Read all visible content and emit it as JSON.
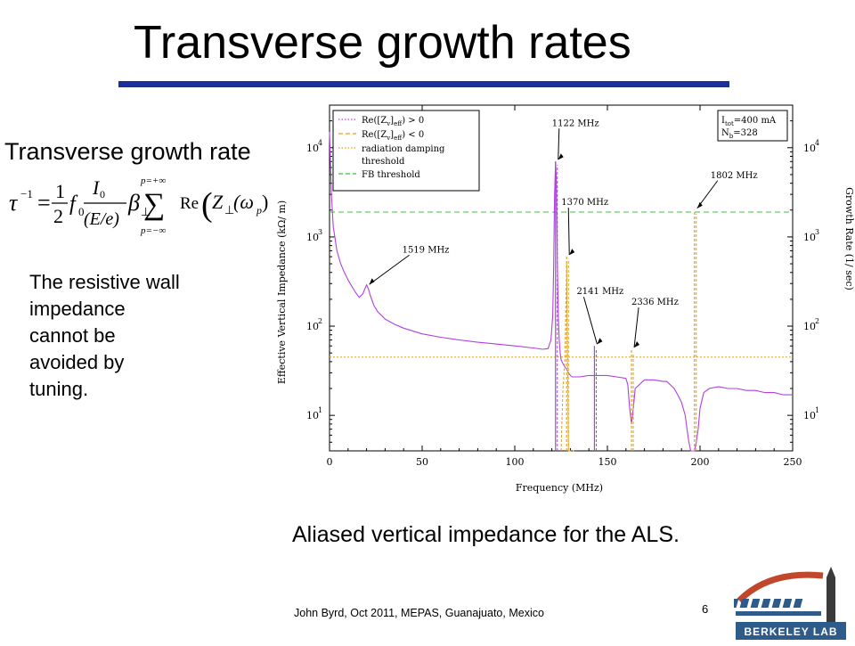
{
  "slide": {
    "title": "Transverse growth rates",
    "subtitle": "Transverse growth rate",
    "paragraph_lines": [
      "The resistive wall",
      "impedance",
      "cannot be",
      "avoided by",
      "tuning."
    ],
    "caption": "Aliased vertical impedance for the ALS.",
    "footer": "John Byrd, Oct 2011, MEPAS, Guanajuato, Mexico",
    "page_number": "6",
    "accent_color": "#1b2f9c",
    "logo_text": "BERKELEY LAB"
  },
  "formula": {
    "lhs": "τ",
    "lhs_exp": "−1",
    "eq": "=",
    "frac1_num": "1",
    "frac1_den": "2",
    "f0": "f",
    "f0_sub": "0",
    "frac2_num": "I",
    "frac2_num_sub": "0",
    "frac2_den": "(E/e)",
    "beta": "β",
    "beta_sub": "⊥",
    "sum_upper": "p=+∞",
    "sum_lower": "p=−∞",
    "sum": "∑",
    "re": "Re",
    "z": "Z",
    "z_sub": "⊥",
    "arg": "(ω",
    "arg_sub": "p",
    "arg_close": ")"
  },
  "chart_data": {
    "type": "line",
    "xlabel": "Frequency (MHz)",
    "ylabel": "Effective Vertical Impedance (kΩ/ m)",
    "y2label": "Growth Rate (1/ sec)",
    "x_ticks": [
      "0",
      "50",
      "100",
      "150",
      "200",
      "250"
    ],
    "xlim": [
      0,
      250
    ],
    "ylim": [
      4,
      30000
    ],
    "y_scale": "log",
    "y_ticks": [
      {
        "base": "10",
        "exp": "1",
        "value": 10
      },
      {
        "base": "10",
        "exp": "2",
        "value": 100
      },
      {
        "base": "10",
        "exp": "3",
        "value": 1000
      },
      {
        "base": "10",
        "exp": "4",
        "value": 10000
      }
    ],
    "y2_ticks": [
      {
        "base": "10",
        "exp": "1",
        "value": 10
      },
      {
        "base": "10",
        "exp": "2",
        "value": 100
      },
      {
        "base": "10",
        "exp": "3",
        "value": 1000
      },
      {
        "base": "10",
        "exp": "4",
        "value": 10000
      }
    ],
    "legend_position": "top-left",
    "legend": [
      {
        "label": "Re([Z",
        "sub": "v",
        "label2": "]",
        "sub2": "eff",
        "label3": ") > 0",
        "color": "#c040e0",
        "style": "dotted"
      },
      {
        "label": "Re([Z",
        "sub": "v",
        "label2": "]",
        "sub2": "eff",
        "label3": ") < 0",
        "color": "#e0a020",
        "style": "dashed"
      },
      {
        "label": "radiation damping",
        "label_line2": "threshold",
        "color": "#e0a020",
        "style": "dotted"
      },
      {
        "label": "FB threshold",
        "color": "#40c040",
        "style": "dashed"
      }
    ],
    "info_box": {
      "line1": "I",
      "line1_sub": "tot",
      "line1_rest": "=400 mA",
      "line2": "N",
      "line2_sub": "b",
      "line2_rest": "=328"
    },
    "thresholds": [
      {
        "name": "radiation damping threshold",
        "y": 45,
        "color": "#e0a020"
      },
      {
        "name": "FB threshold",
        "y": 1900,
        "color": "#40c040"
      }
    ],
    "positive_series": {
      "color": "#b040e0",
      "x": [
        0,
        1,
        2,
        4,
        6,
        8,
        10,
        12,
        14,
        16,
        18,
        19,
        20,
        21,
        22,
        24,
        26,
        30,
        35,
        40,
        50,
        60,
        70,
        80,
        90,
        100,
        110,
        115,
        118,
        119.5,
        120.5,
        121,
        121.5,
        122,
        122.5,
        123,
        123.5,
        124,
        124.5,
        125,
        126,
        127,
        128,
        129,
        130,
        131,
        132,
        135,
        140,
        145,
        150,
        155,
        160,
        161,
        162,
        163,
        164,
        165,
        170,
        175,
        180,
        182,
        184,
        186,
        188,
        190,
        192,
        193,
        194,
        195,
        196,
        197,
        198,
        199,
        200,
        202,
        205,
        210,
        215,
        220,
        225,
        230,
        235,
        240,
        245,
        250
      ],
      "y": [
        15000,
        3000,
        1300,
        700,
        500,
        400,
        330,
        280,
        240,
        210,
        230,
        260,
        290,
        260,
        220,
        170,
        145,
        120,
        105,
        95,
        82,
        75,
        70,
        66,
        63,
        60,
        57,
        55,
        56,
        70,
        130,
        500,
        3000,
        7000,
        4000,
        500,
        130,
        70,
        50,
        42,
        38,
        35,
        33,
        30,
        28,
        27,
        27,
        27,
        28,
        28,
        28,
        27,
        26,
        22,
        12,
        8,
        12,
        20,
        25,
        25,
        24,
        24,
        22,
        20,
        17,
        14,
        10,
        7,
        5,
        4,
        4,
        4,
        5,
        7,
        12,
        18,
        20,
        21,
        20,
        20,
        19,
        19,
        18,
        18,
        17,
        17
      ]
    },
    "negative_series": {
      "color": "#e0a020",
      "x": [
        125,
        126,
        127,
        128,
        129,
        130,
        131,
        132
      ],
      "y": [
        4,
        20,
        40,
        500,
        4,
        4,
        4,
        4
      ]
    },
    "spikes": [
      {
        "x": 122,
        "y": 7000,
        "series": "positive"
      },
      {
        "x": 128,
        "y": 600,
        "series": "negative"
      },
      {
        "x": 143,
        "y": 60,
        "series": "positive"
      },
      {
        "x": 163,
        "y": 55,
        "series": "negative"
      },
      {
        "x": 197,
        "y": 2000,
        "series": "negative"
      }
    ],
    "annotations": [
      {
        "text": "1519 MHz",
        "x": 20,
        "y": 280
      },
      {
        "text": "1122 MHz",
        "x": 122,
        "y": 7000
      },
      {
        "text": "1370 MHz",
        "x": 128,
        "y": 600
      },
      {
        "text": "2141 MHz",
        "x": 143,
        "y": 60
      },
      {
        "text": "2336 MHz",
        "x": 163,
        "y": 55
      },
      {
        "text": "1802 MHz",
        "x": 197,
        "y": 2000
      }
    ]
  }
}
